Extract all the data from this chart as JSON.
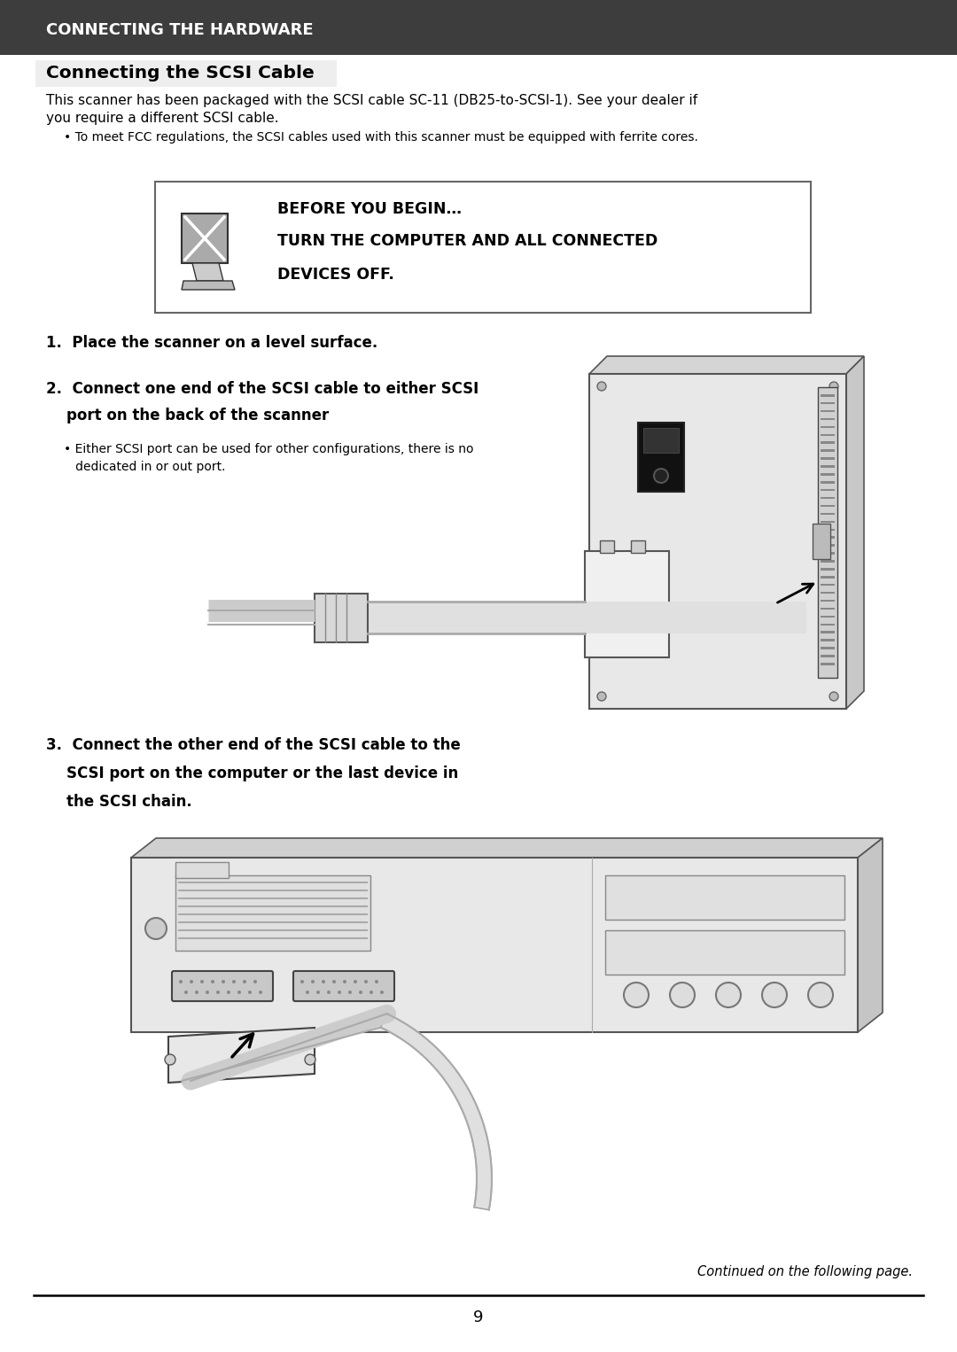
{
  "header_bg": "#3d3d3d",
  "header_text": "CONNECTING THE HARDWARE",
  "header_text_color": "#ffffff",
  "header_fontsize": 13,
  "page_bg": "#ffffff",
  "section_title": "Connecting the SCSI Cable",
  "section_title_fontsize": 14.5,
  "body_text1": "This scanner has been packaged with the SCSI cable SC-11 (DB25-to-SCSI-1). See your dealer if\nyou require a different SCSI cable.",
  "body_text1_fontsize": 11,
  "bullet_text": "• To meet FCC regulations, the SCSI cables used with this scanner must be equipped with ferrite cores.",
  "bullet_fontsize": 10,
  "warning_box_text_line1": "BEFORE YOU BEGIN…",
  "warning_box_text_line2": "TURN THE COMPUTER AND ALL CONNECTED",
  "warning_box_text_line3": "DEVICES OFF.",
  "warning_fontsize": 12.5,
  "step1_text": "1.  Place the scanner on a level surface.",
  "step1_fontsize": 12,
  "step2_title_line1": "2.  Connect one end of the SCSI cable to either SCSI",
  "step2_title_line2": "    port on the back of the scanner",
  "step2_fontsize": 12,
  "step2_bullet_line1": "• Either SCSI port can be used for other configurations, there is no",
  "step2_bullet_line2": "   dedicated in or out port.",
  "step2_bullet_fontsize": 10,
  "step3_title_line1": "3.  Connect the other end of the SCSI cable to the",
  "step3_title_line2": "    SCSI port on the computer or the last device in",
  "step3_title_line3": "    the SCSI chain.",
  "step3_fontsize": 12,
  "continued_text": "Continued on the following page.",
  "continued_fontsize": 10.5,
  "page_number": "9",
  "page_number_fontsize": 13,
  "text_color": "#000000",
  "line_color": "#555555",
  "light_gray": "#e8e8e8",
  "med_gray": "#cccccc",
  "dark_gray": "#888888"
}
